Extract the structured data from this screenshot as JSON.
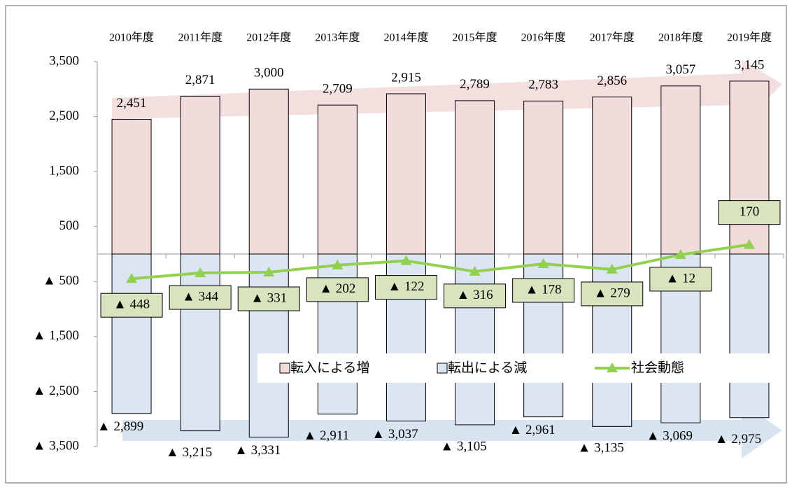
{
  "chart_data": {
    "type": "bar",
    "categories": [
      "2010年度",
      "2011年度",
      "2012年度",
      "2013年度",
      "2014年度",
      "2015年度",
      "2016年度",
      "2017年度",
      "2018年度",
      "2019年度"
    ],
    "ylim": [
      -3500,
      3500
    ],
    "yticks": [
      {
        "value": 3500,
        "label": "3,500"
      },
      {
        "value": 2500,
        "label": "2,500"
      },
      {
        "value": 1500,
        "label": "1,500"
      },
      {
        "value": 500,
        "label": "500"
      },
      {
        "value": -500,
        "label": "▲ 500"
      },
      {
        "value": -1500,
        "label": "▲ 1,500"
      },
      {
        "value": -2500,
        "label": "▲ 2,500"
      },
      {
        "value": -3500,
        "label": "▲ 3,500"
      }
    ],
    "series": [
      {
        "name": "転入による増",
        "color": "#f2dcdb",
        "type": "bar",
        "values": [
          2451,
          2871,
          3000,
          2709,
          2915,
          2789,
          2783,
          2856,
          3057,
          3145
        ],
        "value_labels": [
          "2,451",
          "2,871",
          "3,000",
          "2,709",
          "2,915",
          "2,789",
          "2,783",
          "2,856",
          "3,057",
          "3,145"
        ]
      },
      {
        "name": "転出による減",
        "color": "#dce6f2",
        "type": "bar",
        "values": [
          -2899,
          -3215,
          -3331,
          -2911,
          -3037,
          -3105,
          -2961,
          -3135,
          -3069,
          -2975
        ],
        "value_labels": [
          "▲ 2,899",
          "▲ 3,215",
          "▲ 3,331",
          "▲ 2,911",
          "▲ 3,037",
          "▲ 3,105",
          "▲ 2,961",
          "▲ 3,135",
          "▲ 3,069",
          "▲ 2,975"
        ]
      },
      {
        "name": "社会動態",
        "color": "#92d050",
        "type": "line",
        "values": [
          -448,
          -344,
          -331,
          -202,
          -122,
          -316,
          -178,
          -279,
          -12,
          170
        ],
        "value_labels": [
          "▲ 448",
          "▲ 344",
          "▲ 331",
          "▲ 202",
          "▲ 122",
          "▲ 316",
          "▲ 178",
          "▲ 279",
          "▲ 12",
          "170"
        ]
      }
    ]
  }
}
